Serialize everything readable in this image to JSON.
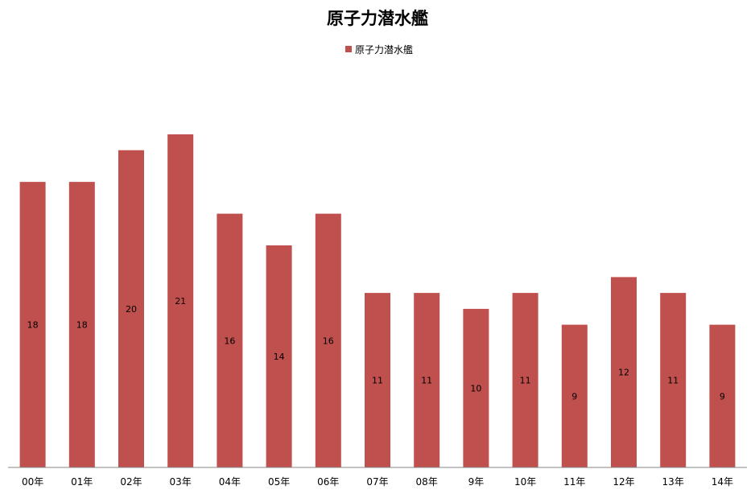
{
  "chart_data": {
    "type": "bar",
    "title": "原子力潜水艦",
    "legend_position": "top",
    "grid": false,
    "xlabel": "",
    "ylabel": "",
    "ylim": [
      0,
      21
    ],
    "categories": [
      "00年",
      "01年",
      "02年",
      "03年",
      "04年",
      "05年",
      "06年",
      "07年",
      "08年",
      "09年",
      "10年",
      "11年",
      "12年",
      "13年",
      "14年"
    ],
    "series": [
      {
        "name": "原子力潜水艦",
        "color": "#c0504d",
        "values": [
          18,
          18,
          20,
          21,
          16,
          14,
          16,
          11,
          11,
          10,
          11,
          9,
          12,
          11,
          9
        ],
        "labels": [
          "18",
          "18",
          "20",
          "21",
          "16",
          "14",
          "16",
          "11",
          "11",
          "10",
          "11",
          "9",
          "12",
          "11",
          "9"
        ]
      }
    ]
  },
  "tick_labels": [
    "00年",
    "01年",
    "02年",
    "03年",
    "04年",
    "05年",
    "06年",
    "07年",
    "08年",
    "9年",
    "10年",
    "11年",
    "12年",
    "13年",
    "14年"
  ]
}
